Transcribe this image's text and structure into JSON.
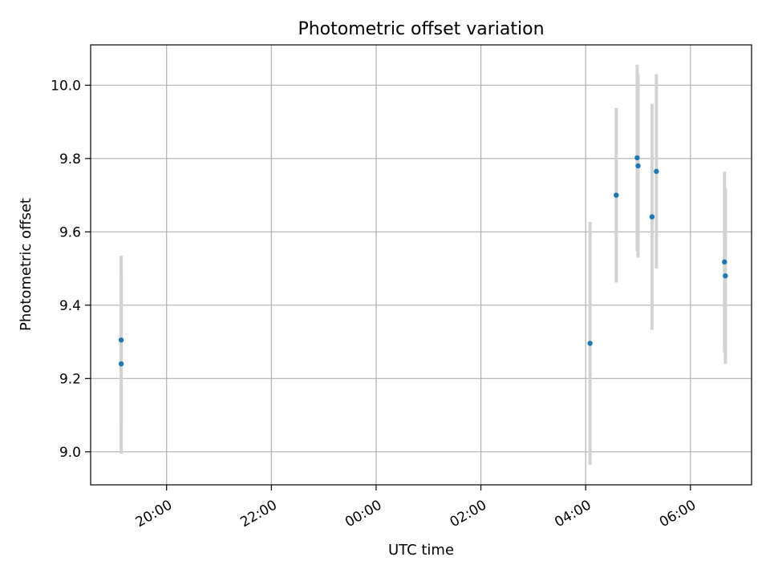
{
  "chart_data": {
    "type": "scatter",
    "title": "Photometric offset variation",
    "xlabel": "UTC time",
    "ylabel": "Photometric offset",
    "x_axis": "time",
    "xlim": [
      "2000-01-01T18:33",
      "2000-01-02T07:10"
    ],
    "ylim": [
      8.91,
      10.11
    ],
    "x_ticks": [
      {
        "t": "2000-01-01T20:00",
        "label": "20:00"
      },
      {
        "t": "2000-01-01T22:00",
        "label": "22:00"
      },
      {
        "t": "2000-01-02T00:00",
        "label": "00:00"
      },
      {
        "t": "2000-01-02T02:00",
        "label": "02:00"
      },
      {
        "t": "2000-01-02T04:00",
        "label": "04:00"
      },
      {
        "t": "2000-01-02T06:00",
        "label": "06:00"
      }
    ],
    "y_ticks": [
      {
        "v": 9.0,
        "label": "9.0"
      },
      {
        "v": 9.2,
        "label": "9.2"
      },
      {
        "v": 9.4,
        "label": "9.4"
      },
      {
        "v": 9.6,
        "label": "9.6"
      },
      {
        "v": 9.8,
        "label": "9.8"
      },
      {
        "v": 10.0,
        "label": "10.0"
      }
    ],
    "grid": true,
    "marker_color": "#1f77b4",
    "errorbar_color": "#d3d3d3",
    "points": [
      {
        "t": "2000-01-01T19:08",
        "y": 9.305,
        "err_low": 9.075,
        "err_high": 9.535
      },
      {
        "t": "2000-01-01T19:08",
        "y": 9.24,
        "err_low": 8.995,
        "err_high": 9.485
      },
      {
        "t": "2000-01-02T04:05",
        "y": 9.296,
        "err_low": 8.965,
        "err_high": 9.627
      },
      {
        "t": "2000-01-02T04:35",
        "y": 9.7,
        "err_low": 9.462,
        "err_high": 9.938
      },
      {
        "t": "2000-01-02T04:59",
        "y": 9.802,
        "err_low": 9.548,
        "err_high": 10.056
      },
      {
        "t": "2000-01-02T05:00",
        "y": 9.78,
        "err_low": 9.53,
        "err_high": 10.03
      },
      {
        "t": "2000-01-02T05:16",
        "y": 9.641,
        "err_low": 9.333,
        "err_high": 9.949
      },
      {
        "t": "2000-01-02T05:21",
        "y": 9.765,
        "err_low": 9.5,
        "err_high": 10.03
      },
      {
        "t": "2000-01-02T06:39",
        "y": 9.518,
        "err_low": 9.272,
        "err_high": 9.764
      },
      {
        "t": "2000-01-02T06:40",
        "y": 9.48,
        "err_low": 9.24,
        "err_high": 9.72
      }
    ]
  }
}
